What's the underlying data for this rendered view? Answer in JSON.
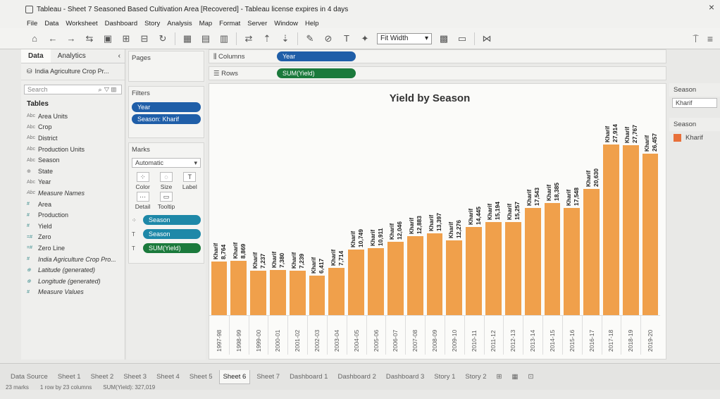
{
  "window": {
    "title": "Tableau - Sheet 7 Seasoned Based Cultivation Area [Recovered] - Tableau license expires in 4 days"
  },
  "menu": [
    "File",
    "Data",
    "Worksheet",
    "Dashboard",
    "Story",
    "Analysis",
    "Map",
    "Format",
    "Server",
    "Window",
    "Help"
  ],
  "toolbar": {
    "fit": "Fit Width"
  },
  "data_panel": {
    "tabs": [
      "Data",
      "Analytics"
    ],
    "data_source": "India Agriculture Crop Pr...",
    "search_placeholder": "Search",
    "tables_header": "Tables",
    "fields": [
      {
        "type": "Abc",
        "name": "Area Units",
        "kind": "dim"
      },
      {
        "type": "Abc",
        "name": "Crop",
        "kind": "dim"
      },
      {
        "type": "Abc",
        "name": "District",
        "kind": "dim"
      },
      {
        "type": "Abc",
        "name": "Production Units",
        "kind": "dim"
      },
      {
        "type": "Abc",
        "name": "Season",
        "kind": "dim"
      },
      {
        "type": "⊕",
        "name": "State",
        "kind": "dim"
      },
      {
        "type": "Abc",
        "name": "Year",
        "kind": "dim"
      },
      {
        "type": "Abc",
        "name": "Measure Names",
        "kind": "dim",
        "italic": true
      },
      {
        "type": "#",
        "name": "Area",
        "kind": "measure"
      },
      {
        "type": "#",
        "name": "Production",
        "kind": "measure"
      },
      {
        "type": "#",
        "name": "Yield",
        "kind": "measure"
      },
      {
        "type": "=#",
        "name": "Zero",
        "kind": "measure"
      },
      {
        "type": "=#",
        "name": "Zero Line",
        "kind": "measure"
      },
      {
        "type": "#",
        "name": "India Agriculture Crop Pro...",
        "kind": "measure",
        "italic": true
      },
      {
        "type": "⊕",
        "name": "Latitude (generated)",
        "kind": "measure",
        "italic": true
      },
      {
        "type": "⊕",
        "name": "Longitude (generated)",
        "kind": "measure",
        "italic": true
      },
      {
        "type": "#",
        "name": "Measure Values",
        "kind": "measure",
        "italic": true
      }
    ]
  },
  "pages": {
    "header": "Pages"
  },
  "filters": {
    "header": "Filters",
    "items": [
      "Year",
      "Season: Kharif"
    ]
  },
  "marks": {
    "header": "Marks",
    "type": "Automatic",
    "buttons": [
      "Color",
      "Size",
      "Label",
      "Detail",
      "Tooltip"
    ],
    "fields": [
      "Season",
      "Season",
      "SUM(Yield)"
    ]
  },
  "shelves": {
    "columns_label": "Columns",
    "columns_pill": "Year",
    "rows_label": "Rows",
    "rows_pill": "SUM(Yield)"
  },
  "right_panel": {
    "filter_title": "Season",
    "filter_value": "Kharif",
    "legend_title": "Season",
    "legend_item": "Kharif"
  },
  "tabs": {
    "data_source": "Data Source",
    "sheets": [
      "Sheet 1",
      "Sheet 2",
      "Sheet 3",
      "Sheet 4",
      "Sheet 5",
      "Sheet 6",
      "Sheet 7",
      "Dashboard 1",
      "Dashboard 2",
      "Dashboard 3",
      "Story 1",
      "Story 2"
    ],
    "active": "Sheet 6"
  },
  "status": {
    "marks": "23 marks",
    "rows": "1 row by 23 columns",
    "sum": "SUM(Yield): 327,019"
  },
  "colors": {
    "bar": "#f0a04b",
    "legend": "#e8703a",
    "pill_blue": "#1f5ea8",
    "pill_green": "#1b7a3c"
  },
  "chart_data": {
    "type": "bar",
    "title": "Yield by Season",
    "mark_label": "Kharif",
    "categories": [
      "1997-98",
      "1998-99",
      "1999-00",
      "2000-01",
      "2001-02",
      "2002-03",
      "2003-04",
      "2004-05",
      "2005-06",
      "2006-07",
      "2007-08",
      "2008-09",
      "2009-10",
      "2010-11",
      "2011-12",
      "2012-13",
      "2013-14",
      "2014-15",
      "2015-16",
      "2016-17",
      "2017-18",
      "2018-19",
      "2019-20"
    ],
    "series": [
      {
        "name": "Kharif",
        "values": [
          8764,
          8869,
          7237,
          7380,
          7239,
          6417,
          7714,
          10749,
          10911,
          12046,
          12883,
          13397,
          12276,
          14445,
          15194,
          15257,
          17543,
          18385,
          17548,
          20630,
          27914,
          27767,
          26457
        ]
      }
    ],
    "value_labels": [
      "8,764",
      "8,869",
      "7,237",
      "7,380",
      "7,239",
      "6,417",
      "7,714",
      "10,749",
      "10,911",
      "12,046",
      "12,883",
      "13,397",
      "12,276",
      "14,445",
      "15,194",
      "15,257",
      "17,543",
      "18,385",
      "17,548",
      "20,630",
      "27,914",
      "27,767",
      "26,457"
    ],
    "xlabel": "",
    "ylabel": "",
    "ylim": [
      0,
      30000
    ],
    "grid": false,
    "legend": "right"
  }
}
